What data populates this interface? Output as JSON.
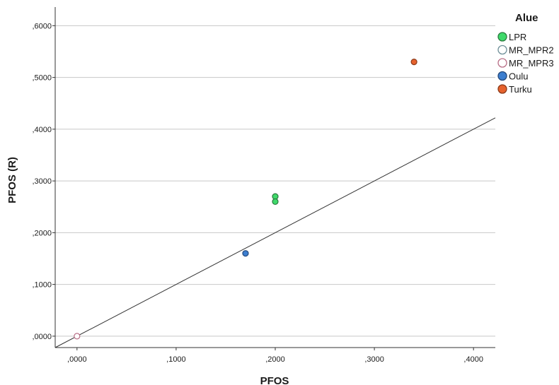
{
  "chart_data": {
    "type": "scatter",
    "xlabel": "PFOS",
    "ylabel": "PFOS (R)",
    "xlim": [
      -0.022,
      0.422
    ],
    "ylim": [
      -0.022,
      0.636
    ],
    "x_ticks": [
      {
        "value": 0.0,
        "label": ",0000"
      },
      {
        "value": 0.1,
        "label": ",1000"
      },
      {
        "value": 0.2,
        "label": ",2000"
      },
      {
        "value": 0.3,
        "label": ",3000"
      },
      {
        "value": 0.4,
        "label": ",4000"
      }
    ],
    "y_ticks": [
      {
        "value": 0.0,
        "label": ",0000"
      },
      {
        "value": 0.1,
        "label": ",1000"
      },
      {
        "value": 0.2,
        "label": ",2000"
      },
      {
        "value": 0.3,
        "label": ",3000"
      },
      {
        "value": 0.4,
        "label": ",4000"
      },
      {
        "value": 0.5,
        "label": ",5000"
      },
      {
        "value": 0.6,
        "label": ",6000"
      }
    ],
    "grid": "horizontal",
    "legend": {
      "title": "Alue",
      "placement": "top-right",
      "entries": [
        {
          "name": "LPR",
          "fill": "#3fd96a",
          "stroke": "#2a7a3f",
          "filled": true
        },
        {
          "name": "MR_MPR2",
          "fill": "none",
          "stroke": "#6e8f98",
          "filled": false
        },
        {
          "name": "MR_MPR3",
          "fill": "none",
          "stroke": "#b86e86",
          "filled": false
        },
        {
          "name": "Oulu",
          "fill": "#3c7ecf",
          "stroke": "#24487a",
          "filled": true
        },
        {
          "name": "Turku",
          "fill": "#e6622d",
          "stroke": "#8a3a1a",
          "filled": true
        }
      ]
    },
    "series": [
      {
        "name": "LPR",
        "points": [
          [
            0.2,
            0.27
          ],
          [
            0.2,
            0.26
          ]
        ]
      },
      {
        "name": "MR_MPR3",
        "points": [
          [
            0.0,
            0.0
          ]
        ]
      },
      {
        "name": "Oulu",
        "points": [
          [
            0.17,
            0.16
          ]
        ]
      },
      {
        "name": "Turku",
        "points": [
          [
            0.34,
            0.53
          ]
        ]
      }
    ],
    "reference_line": {
      "slope": 1,
      "intercept": 0,
      "color": "#333333"
    }
  }
}
